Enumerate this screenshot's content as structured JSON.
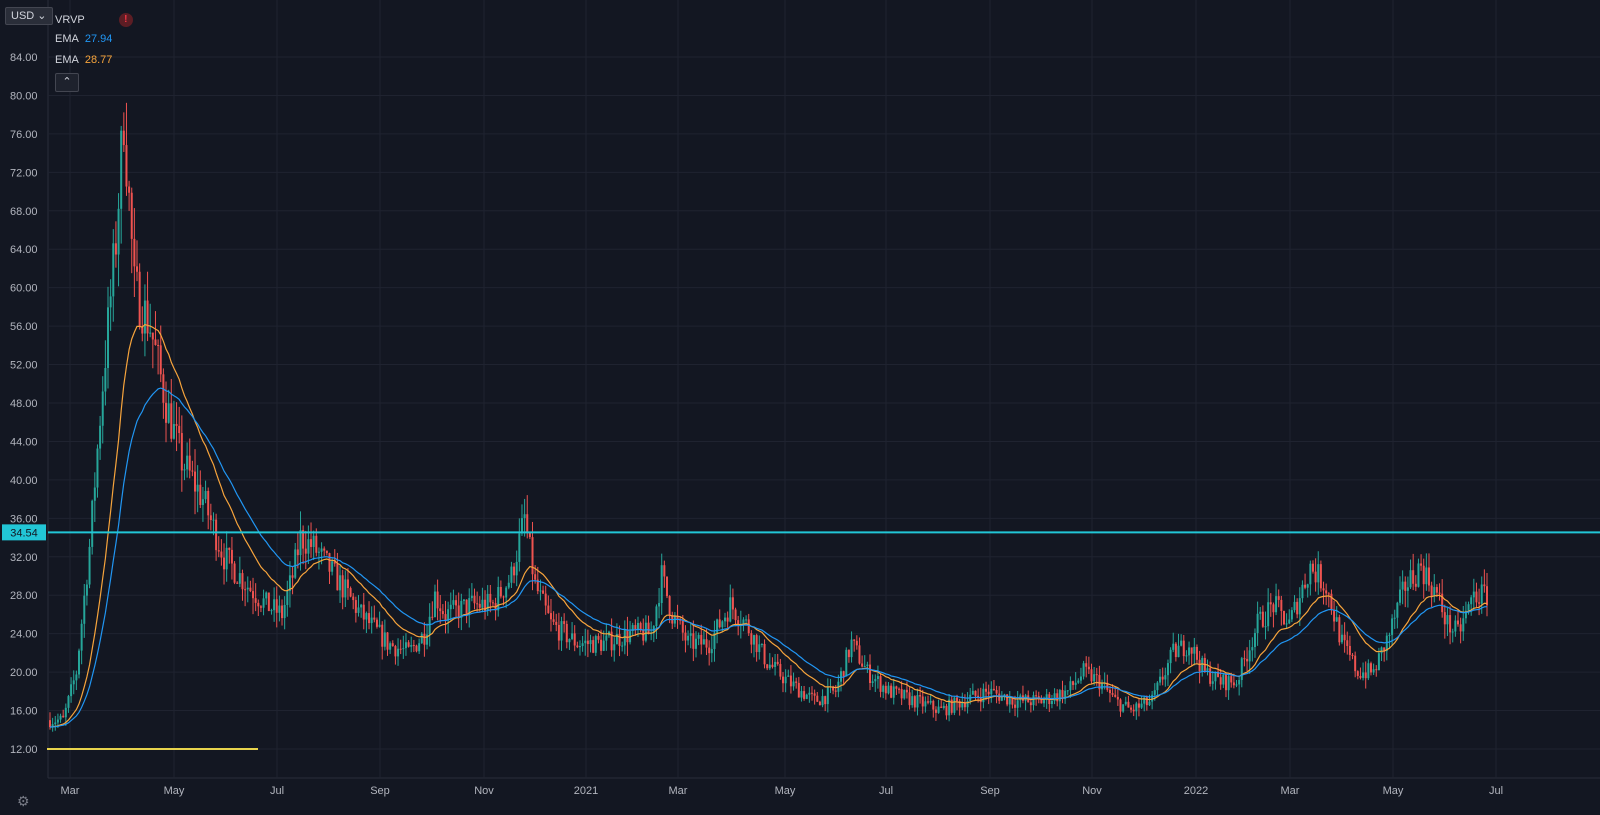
{
  "currency_label": "USD",
  "legend": [
    {
      "name": "VRVP",
      "value": ""
    },
    {
      "name": "EMA",
      "value": "27.94",
      "color": "#2196f3"
    },
    {
      "name": "EMA",
      "value": "28.77",
      "color": "#f7a43c"
    }
  ],
  "collapse_icon": "chevron-up-icon",
  "settings_icon": "gear-icon",
  "colors": {
    "background": "#131722",
    "up": "#26a69a",
    "down": "#ef5350",
    "ema_fast": "#2196f3",
    "ema_slow": "#f7a43c",
    "level_line": "#22c6d6",
    "low_line": "#e8d44d"
  },
  "chart_data": {
    "type": "candlestick",
    "y_ticks": [
      "84.00",
      "80.00",
      "76.00",
      "72.00",
      "68.00",
      "64.00",
      "60.00",
      "56.00",
      "52.00",
      "48.00",
      "44.00",
      "40.00",
      "36.00",
      "32.00",
      "28.00",
      "24.00",
      "20.00",
      "16.00",
      "12.00"
    ],
    "x_ticks": [
      "Mar",
      "May",
      "Jul",
      "Sep",
      "Nov",
      "2021",
      "Mar",
      "May",
      "Jul",
      "Sep",
      "Nov",
      "2022",
      "Mar",
      "May",
      "Jul"
    ],
    "ylim": [
      10.5,
      87
    ],
    "horizontal_level": {
      "value": 34.54,
      "label": "34.54"
    },
    "low_line_value": 12.0,
    "price_keypoints": [
      [
        0,
        15
      ],
      [
        5,
        15
      ],
      [
        10,
        20
      ],
      [
        15,
        33
      ],
      [
        20,
        50
      ],
      [
        25,
        65
      ],
      [
        28,
        78
      ],
      [
        32,
        60
      ],
      [
        38,
        56
      ],
      [
        44,
        48
      ],
      [
        50,
        42
      ],
      [
        58,
        38
      ],
      [
        66,
        32
      ],
      [
        75,
        29
      ],
      [
        82,
        27
      ],
      [
        88,
        26
      ],
      [
        92,
        30
      ],
      [
        95,
        34
      ],
      [
        100,
        33
      ],
      [
        108,
        30
      ],
      [
        118,
        26
      ],
      [
        128,
        23
      ],
      [
        136,
        22
      ],
      [
        142,
        24
      ],
      [
        146,
        28
      ],
      [
        150,
        26
      ],
      [
        160,
        27
      ],
      [
        168,
        27
      ],
      [
        175,
        30
      ],
      [
        180,
        36
      ],
      [
        184,
        29
      ],
      [
        190,
        25
      ],
      [
        200,
        23
      ],
      [
        210,
        23
      ],
      [
        220,
        24
      ],
      [
        228,
        24
      ],
      [
        232,
        30
      ],
      [
        236,
        26
      ],
      [
        242,
        23
      ],
      [
        250,
        23
      ],
      [
        258,
        27
      ],
      [
        264,
        25
      ],
      [
        272,
        21
      ],
      [
        280,
        19
      ],
      [
        290,
        17
      ],
      [
        298,
        18
      ],
      [
        304,
        23
      ],
      [
        310,
        20
      ],
      [
        318,
        18
      ],
      [
        328,
        17
      ],
      [
        338,
        16
      ],
      [
        346,
        17
      ],
      [
        356,
        18
      ],
      [
        366,
        17
      ],
      [
        376,
        17
      ],
      [
        386,
        18
      ],
      [
        392,
        20
      ],
      [
        398,
        19
      ],
      [
        404,
        17
      ],
      [
        410,
        16
      ],
      [
        418,
        17
      ],
      [
        426,
        22
      ],
      [
        432,
        23
      ],
      [
        438,
        20
      ],
      [
        444,
        19
      ],
      [
        450,
        19
      ],
      [
        458,
        25
      ],
      [
        464,
        27
      ],
      [
        470,
        25
      ],
      [
        478,
        31
      ],
      [
        484,
        29
      ],
      [
        490,
        23
      ],
      [
        496,
        20
      ],
      [
        502,
        20
      ],
      [
        508,
        24
      ],
      [
        514,
        29
      ],
      [
        520,
        31
      ],
      [
        526,
        28
      ],
      [
        530,
        25
      ],
      [
        534,
        24
      ],
      [
        540,
        28
      ],
      [
        545,
        28
      ]
    ]
  }
}
